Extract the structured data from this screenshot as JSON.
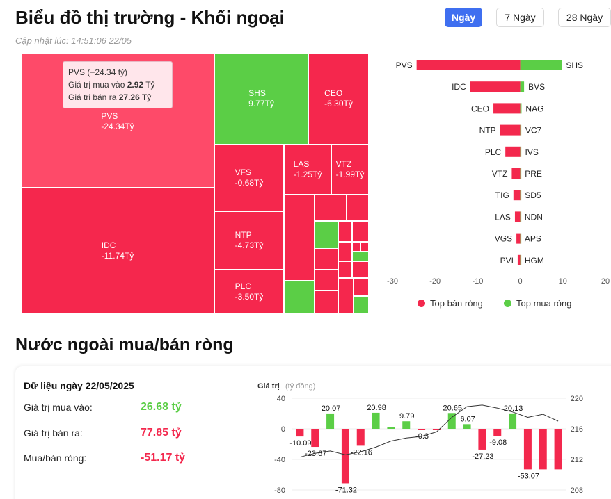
{
  "header": {
    "title": "Biểu đồ thị trường - Khối ngoại",
    "updated": "Cập nhật lúc: 14:51:06 22/05",
    "ranges": [
      "Ngày",
      "7 Ngày",
      "28 Ngày"
    ],
    "active_range": "Ngày"
  },
  "colors": {
    "sell": "#f3284d",
    "buy": "#5bce46",
    "accent": "#3f6ff0"
  },
  "treemap": {
    "cells": [
      {
        "code": "PVS",
        "value": "-24.34Tỷ",
        "color": "#fe4a69"
      },
      {
        "code": "IDC",
        "value": "-11.74Tỷ",
        "color": "#f5274d"
      },
      {
        "code": "SHS",
        "value": "9.77Tỷ",
        "color": "#5bce46"
      },
      {
        "code": "CEO",
        "value": "-6.30Tỷ",
        "color": "#f5274d"
      },
      {
        "code": "VFS",
        "value": "-0.68Tỷ",
        "color": "#f5274d"
      },
      {
        "code": "LAS",
        "value": "-1.25Tỷ",
        "color": "#f5274d"
      },
      {
        "code": "VTZ",
        "value": "-1.99Tỷ",
        "color": "#f5274d"
      },
      {
        "code": "NTP",
        "value": "-4.73Tỷ",
        "color": "#f5274d"
      },
      {
        "code": "PLC",
        "value": "-3.50Tỷ",
        "color": "#f5274d"
      }
    ],
    "tooltip": {
      "title": "PVS (−24.34 tỷ)",
      "buy_label": "Giá trị mua vào",
      "buy_value": "2.92",
      "sell_label": "Giá trị bán ra",
      "sell_value": "27.26",
      "unit": "Tỷ"
    }
  },
  "chart_data": [
    {
      "type": "bar",
      "orientation": "horizontal",
      "sell_categories": [
        "PVS",
        "IDC",
        "CEO",
        "NTP",
        "PLC",
        "VTZ",
        "TIG",
        "LAS",
        "VGS",
        "PVI"
      ],
      "sell_values": [
        -24.34,
        -11.74,
        -6.3,
        -4.73,
        -3.5,
        -1.99,
        -1.6,
        -1.25,
        -0.9,
        -0.6
      ],
      "buy_categories": [
        "SHS",
        "BVS",
        "NAG",
        "VC7",
        "IVS",
        "PRE",
        "SD5",
        "NDN",
        "APS",
        "HGM"
      ],
      "buy_values": [
        9.77,
        0.9,
        0.3,
        0.2,
        0.15,
        0.1,
        0.1,
        0.05,
        0.05,
        0.05
      ],
      "xlim": [
        -30,
        20
      ],
      "xticks": [
        -30,
        -20,
        -10,
        0,
        10,
        20
      ],
      "legend": [
        "Top bán ròng",
        "Top mua ròng"
      ],
      "legend_position": "bottom"
    },
    {
      "type": "bar",
      "title": "Giá trị",
      "ylabel_unit": "(tỷ đồng)",
      "values": [
        -10.09,
        -23.67,
        20.07,
        -71.32,
        -22.16,
        20.98,
        2,
        9.79,
        -0.3,
        -0.3,
        20.65,
        6.07,
        -27.23,
        -9.08,
        20.13,
        -53.07,
        -53.07,
        -53.07
      ],
      "data_labels": [
        "-10.09",
        "-23.67",
        "20.07",
        "-71.32",
        "-22.16",
        "20.98",
        "",
        "9.79",
        "-0.3",
        "",
        "20.65",
        "6.07",
        "-27.23",
        "-9.08",
        "20.13",
        "-53.07",
        "",
        ""
      ],
      "ylim": [
        -80,
        40
      ],
      "yticks": [
        -80,
        -40,
        0,
        40
      ],
      "line_series": {
        "axis": "right",
        "ylim": [
          208,
          220
        ],
        "yticks": [
          208,
          212,
          216,
          220
        ],
        "values": [
          212.3,
          212.8,
          213.1,
          212.6,
          213.0,
          213.6,
          214.4,
          214.8,
          215.0,
          215.6,
          217.5,
          218.9,
          219.1,
          218.7,
          218.2,
          217.5,
          217.9,
          217.0
        ]
      }
    }
  ],
  "net_summary": {
    "section_title": "Nước ngoài mua/bán ròng",
    "date_label": "Dữ liệu ngày 22/05/2025",
    "rows": [
      {
        "label": "Giá trị mua vào:",
        "value": "26.68 tỷ"
      },
      {
        "label": "Giá trị bán ra:",
        "value": "77.85 tỷ"
      },
      {
        "label": "Mua/bán ròng:",
        "value": "-51.17 tỷ"
      }
    ]
  }
}
